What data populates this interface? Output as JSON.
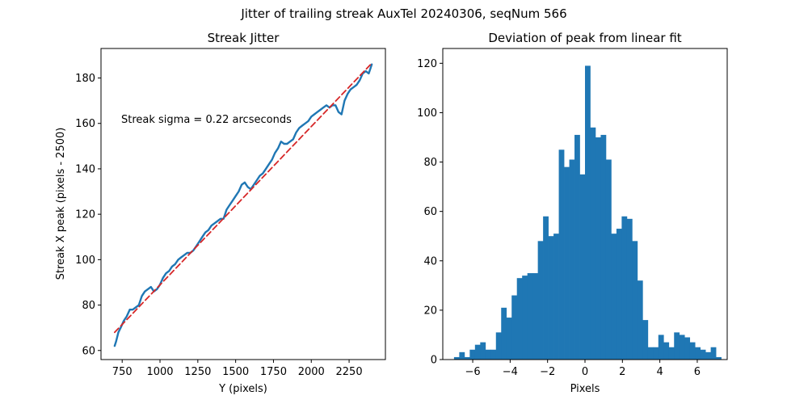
{
  "figure": {
    "suptitle": "Jitter of trailing streak AuxTel 20240306, seqNum 566"
  },
  "chart_data": [
    {
      "type": "line",
      "title": "Streak Jitter",
      "xlabel": "Y (pixels)",
      "ylabel": "Streak X peak (pixels - 2500)",
      "xlim": [
        610,
        2490
      ],
      "ylim": [
        56,
        193
      ],
      "xticks": [
        750,
        1000,
        1250,
        1500,
        1750,
        2000,
        2250
      ],
      "yticks": [
        60,
        80,
        100,
        120,
        140,
        160,
        180
      ],
      "annotation": "Streak sigma = 0.22 arcseconds",
      "grid": false,
      "series": [
        {
          "style": "solid",
          "color": "#1f77b4",
          "x": [
            700,
            710,
            725,
            740,
            760,
            780,
            800,
            820,
            840,
            860,
            880,
            900,
            920,
            940,
            960,
            980,
            1000,
            1020,
            1040,
            1060,
            1080,
            1100,
            1120,
            1140,
            1160,
            1180,
            1200,
            1220,
            1240,
            1260,
            1280,
            1300,
            1320,
            1340,
            1360,
            1380,
            1400,
            1420,
            1440,
            1460,
            1480,
            1500,
            1520,
            1540,
            1560,
            1580,
            1600,
            1620,
            1640,
            1660,
            1680,
            1700,
            1720,
            1740,
            1760,
            1780,
            1800,
            1820,
            1840,
            1860,
            1880,
            1900,
            1920,
            1940,
            1960,
            1980,
            2000,
            2020,
            2040,
            2060,
            2080,
            2100,
            2120,
            2140,
            2160,
            2180,
            2200,
            2220,
            2240,
            2260,
            2280,
            2300,
            2320,
            2340,
            2360,
            2380,
            2390,
            2400
          ],
          "y": [
            62,
            64,
            68,
            70,
            73,
            75,
            78,
            78,
            79,
            80,
            84,
            86,
            87,
            88,
            86,
            87,
            89,
            92,
            94,
            95,
            97,
            98,
            100,
            101,
            102,
            103,
            103,
            104,
            106,
            108,
            110,
            112,
            113,
            115,
            116,
            117,
            118,
            118,
            122,
            124,
            126,
            128,
            130,
            133,
            134,
            132,
            131,
            133,
            135,
            137,
            138,
            140,
            142,
            144,
            147,
            149,
            152,
            151,
            151,
            152,
            153,
            156,
            158,
            159,
            160,
            161,
            163,
            164,
            165,
            166,
            167,
            168,
            167,
            168,
            168,
            165,
            164,
            170,
            173,
            175,
            176,
            177,
            179,
            182,
            183,
            182,
            184,
            186
          ]
        },
        {
          "style": "dashed",
          "color": "#d62728",
          "x": [
            700,
            2400
          ],
          "y": [
            68,
            186.5
          ]
        }
      ]
    },
    {
      "type": "bar",
      "title": "Deviation of peak from linear fit",
      "xlabel": "Pixels",
      "ylabel": "",
      "xlim": [
        -7.6,
        7.6
      ],
      "ylim": [
        0,
        126
      ],
      "xticks": [
        -6,
        -4,
        -2,
        0,
        2,
        4,
        6
      ],
      "yticks": [
        0,
        20,
        40,
        60,
        80,
        100,
        120
      ],
      "bin_start": -7.0,
      "bin_width": 0.28,
      "color": "#1f77b4",
      "values": [
        1,
        3,
        1,
        4,
        6,
        7,
        4,
        4,
        11,
        21,
        17,
        26,
        33,
        34,
        35,
        35,
        48,
        58,
        50,
        51,
        85,
        78,
        81,
        91,
        75,
        119,
        94,
        90,
        91,
        81,
        51,
        53,
        58,
        57,
        48,
        32,
        16,
        5,
        5,
        10,
        7,
        5,
        11,
        10,
        9,
        7,
        5,
        4,
        3,
        5,
        1
      ]
    }
  ]
}
